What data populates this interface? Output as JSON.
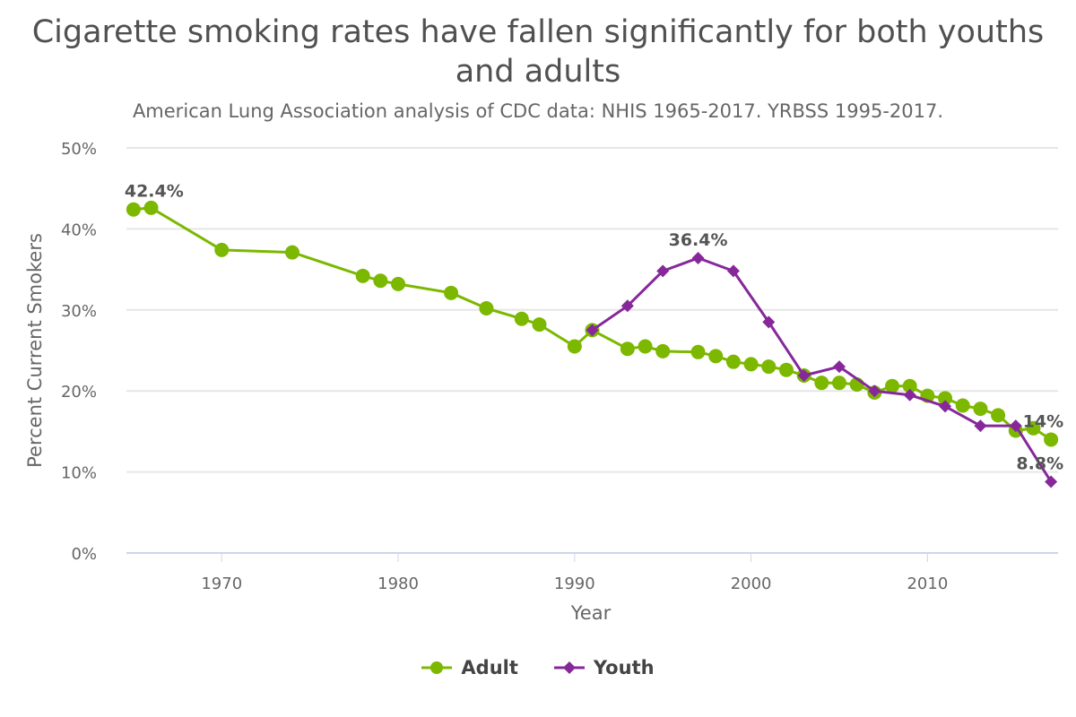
{
  "chart_data": {
    "type": "line",
    "title": "Cigarette smoking rates have fallen significantly for both youths and adults",
    "subtitle": "American Lung Association analysis of CDC data: NHIS 1965-2017. YRBSS 1995-2017.",
    "xlabel": "Year",
    "ylabel": "Percent Current Smokers",
    "xlim": [
      1964.6,
      2017.4
    ],
    "ylim": [
      0,
      50
    ],
    "x_ticks": [
      1970,
      1980,
      1990,
      2000,
      2010
    ],
    "x_tick_labels": [
      "1970",
      "1980",
      "1990",
      "2000",
      "2010"
    ],
    "y_ticks": [
      0,
      10,
      20,
      30,
      40,
      50
    ],
    "y_tick_labels": [
      "0%",
      "10%",
      "20%",
      "30%",
      "40%",
      "50%"
    ],
    "grid": true,
    "legend": "bottom-center",
    "series": [
      {
        "name": "Adult",
        "color": "#7cb800",
        "marker": "circle",
        "x": [
          1965,
          1966,
          1970,
          1974,
          1978,
          1979,
          1980,
          1983,
          1985,
          1987,
          1988,
          1990,
          1991,
          1993,
          1994,
          1995,
          1997,
          1998,
          1999,
          2000,
          2001,
          2002,
          2003,
          2004,
          2005,
          2006,
          2007,
          2008,
          2009,
          2010,
          2011,
          2012,
          2013,
          2014,
          2015,
          2016,
          2017
        ],
        "values": [
          42.4,
          42.6,
          37.4,
          37.1,
          34.2,
          33.6,
          33.2,
          32.1,
          30.2,
          28.9,
          28.2,
          25.5,
          27.5,
          25.2,
          25.5,
          24.9,
          24.8,
          24.3,
          23.6,
          23.3,
          23.0,
          22.6,
          21.9,
          21.0,
          21.0,
          20.8,
          19.8,
          20.6,
          20.6,
          19.4,
          19.1,
          18.2,
          17.8,
          17.0,
          15.1,
          15.4,
          14.0
        ],
        "annotations": [
          {
            "x": 1965,
            "text": "42.4%"
          },
          {
            "x": 2017,
            "text": "14%"
          }
        ]
      },
      {
        "name": "Youth",
        "color": "#86289a",
        "marker": "diamond",
        "x": [
          1991,
          1993,
          1995,
          1997,
          1999,
          2001,
          2003,
          2005,
          2007,
          2009,
          2011,
          2013,
          2015,
          2017
        ],
        "values": [
          27.5,
          30.5,
          34.8,
          36.4,
          34.8,
          28.5,
          21.9,
          23.0,
          20.0,
          19.5,
          18.1,
          15.7,
          15.7,
          8.8
        ],
        "annotations": [
          {
            "x": 1997,
            "text": "36.4%"
          },
          {
            "x": 2017,
            "text": "8.8%"
          }
        ]
      }
    ]
  }
}
